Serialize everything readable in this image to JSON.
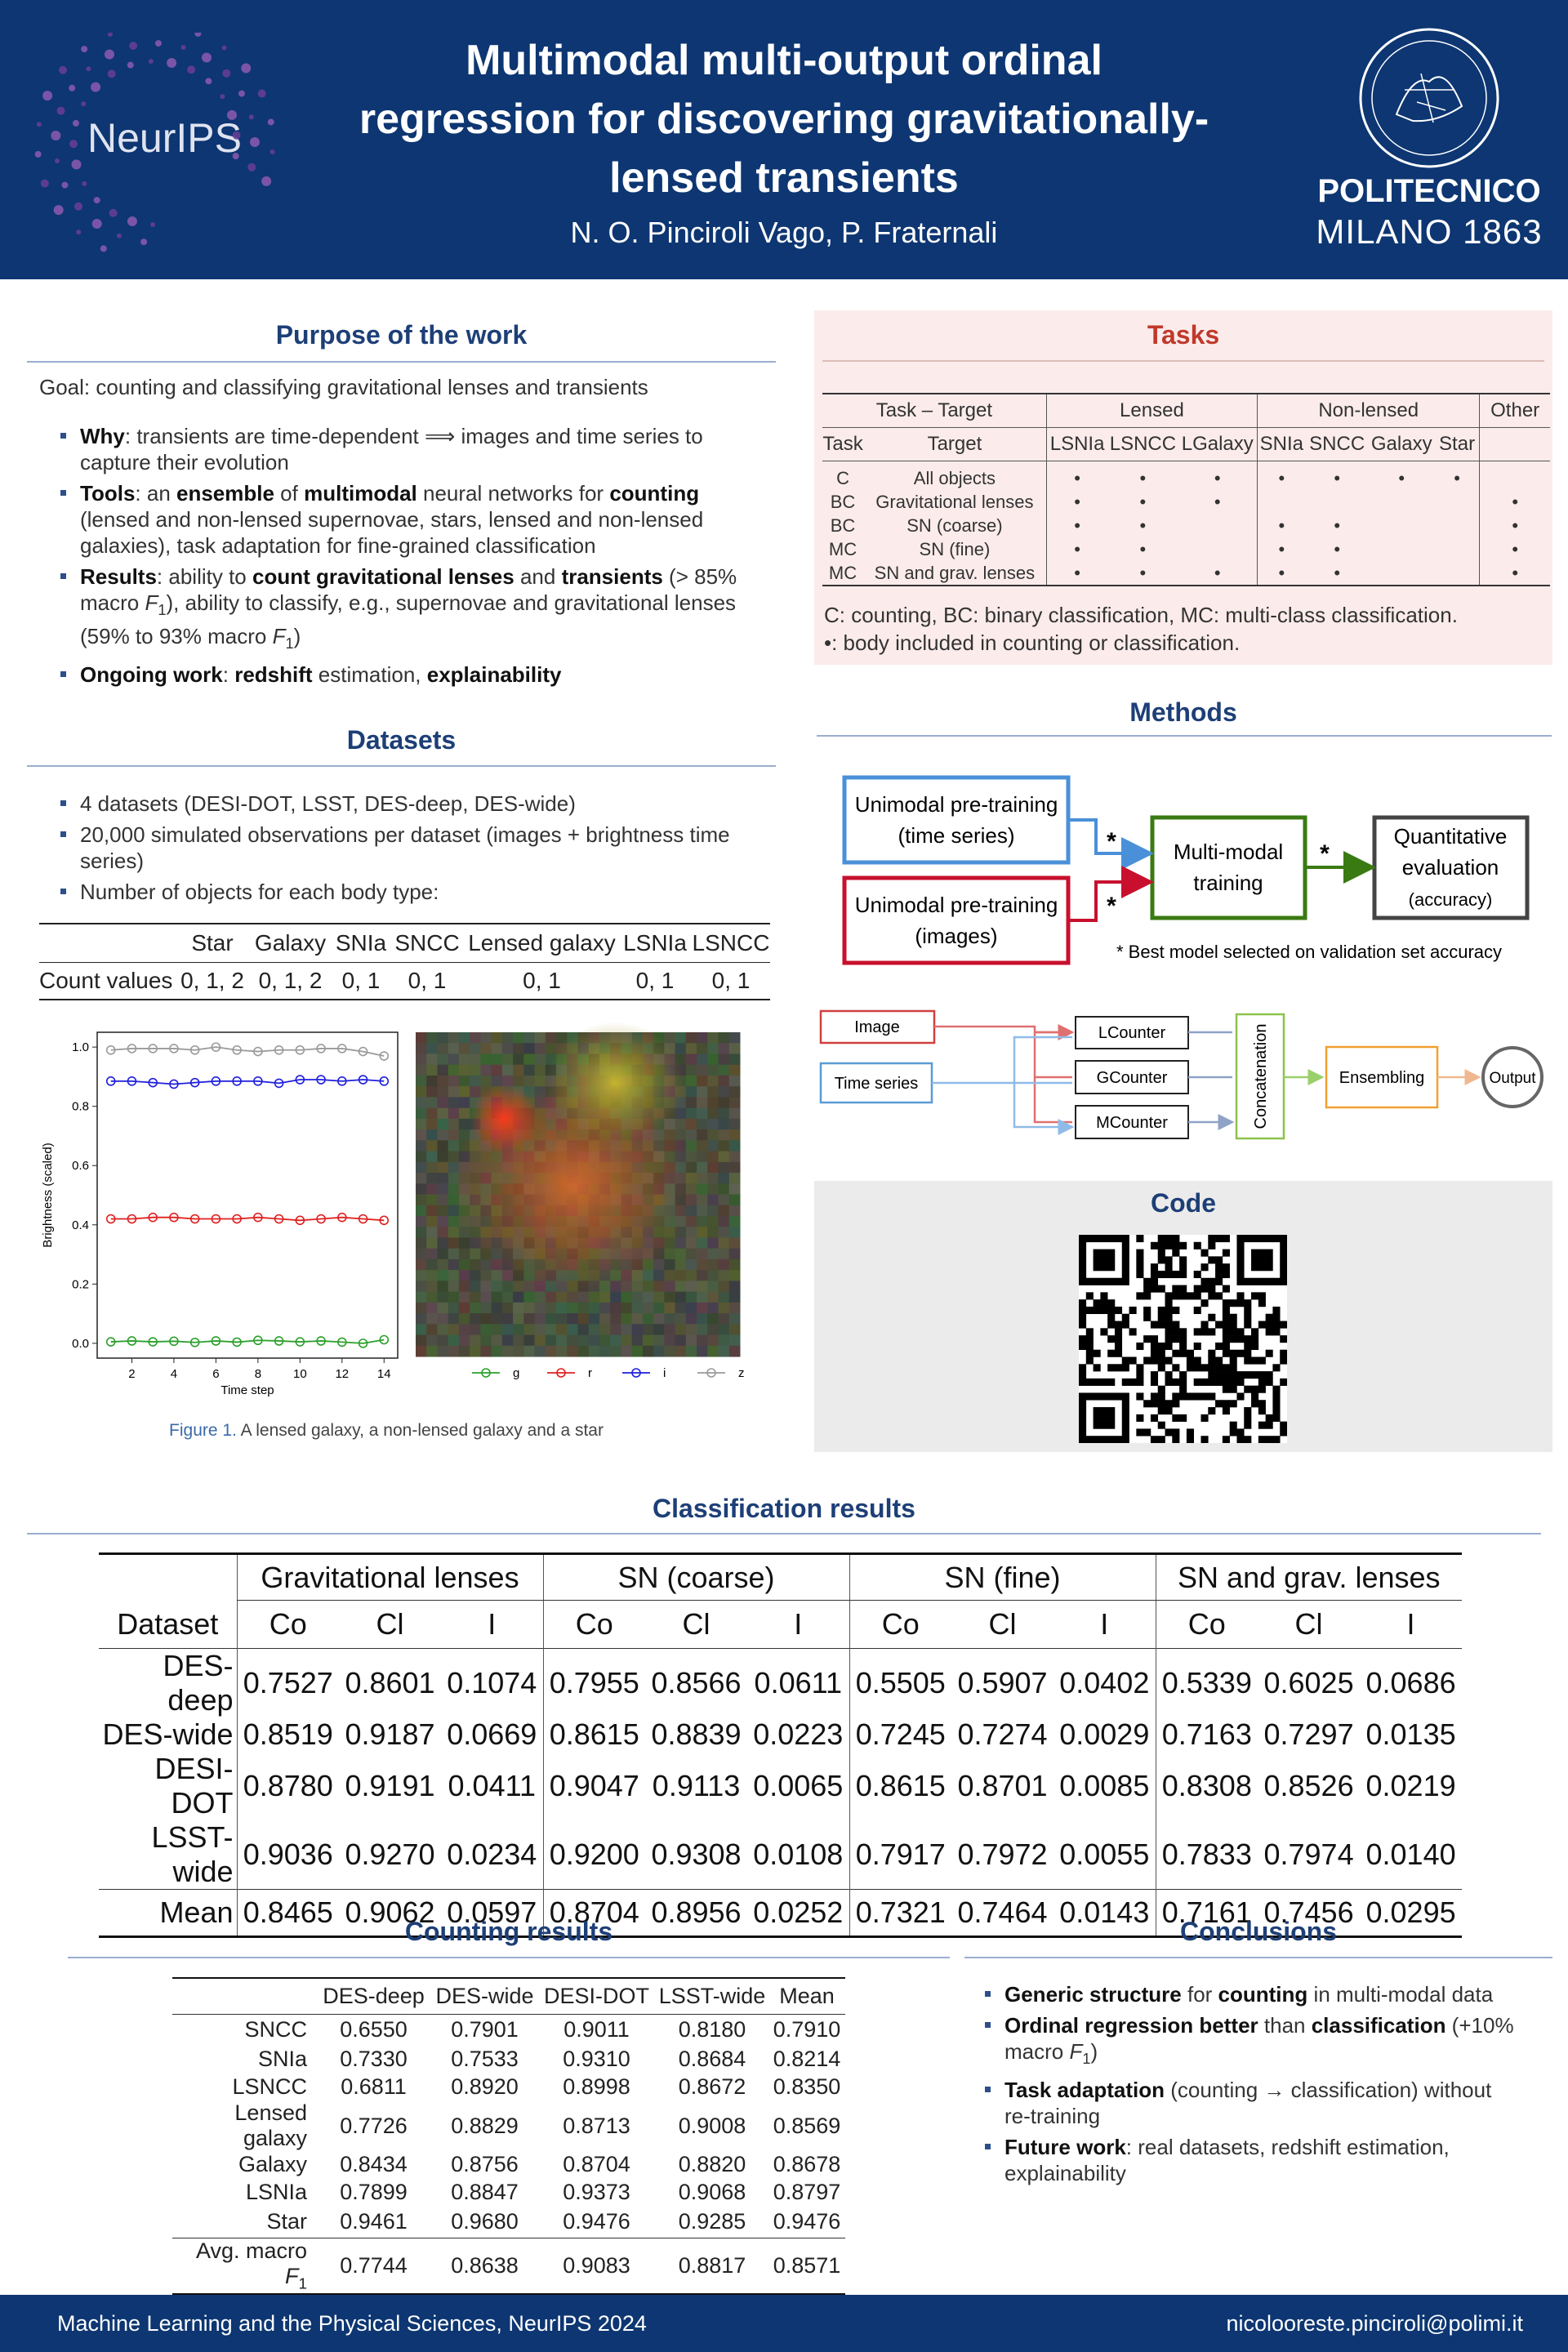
{
  "header": {
    "logo_left": "NeurIPS",
    "title": "Multimodal multi-output ordinal regression for discovering gravitationally-lensed transients",
    "authors": "N. O. Pinciroli Vago, P. Fraternali",
    "logo_right": [
      "POLITECNICO",
      "MILANO 1863"
    ]
  },
  "purpose": {
    "title": "Purpose of the work",
    "goal": [
      "Goal",
      ": counting and classifying gravitational lenses and transients"
    ],
    "bullets": [
      [
        {
          "t": "Why",
          "s": "b"
        },
        ": transients are time-dependent ⟹ images and time series to capture their evolution"
      ],
      [
        {
          "t": "Tools",
          "s": "b"
        },
        ": an ",
        {
          "t": "ensemble",
          "s": "b"
        },
        " of ",
        {
          "t": "multimodal",
          "s": "b"
        },
        " neural networks for ",
        {
          "t": "counting",
          "s": "b"
        },
        " (lensed and non-lensed supernovae, stars, lensed and non-lensed galaxies), task adaptation for fine-grained classification"
      ],
      [
        {
          "t": "Results",
          "s": "b"
        },
        ": ability to ",
        {
          "t": "count gravitational lenses",
          "s": "b"
        },
        " and ",
        {
          "t": "transients",
          "s": "b"
        },
        " (> 85% macro ",
        {
          "t": "F",
          "s": "i"
        },
        {
          "t": "1",
          "s": "sub"
        },
        "), ability to classify, e.g., supernovae and gravitational lenses (59% to 93% macro ",
        {
          "t": "F",
          "s": "i"
        },
        {
          "t": "1",
          "s": "sub"
        },
        ")"
      ],
      [
        {
          "t": "Ongoing work",
          "s": "b"
        },
        ": ",
        {
          "t": "redshift",
          "s": "b"
        },
        " estimation, ",
        {
          "t": "explainability",
          "s": "b"
        }
      ]
    ]
  },
  "tasks": {
    "title": "Tasks",
    "header_groups": [
      {
        "text": "Task – Target",
        "span": 2
      },
      {
        "text": "Lensed",
        "span": 3
      },
      {
        "text": "Non-lensed",
        "span": 4
      },
      {
        "text": "Other",
        "span": 1
      }
    ],
    "columns": [
      "Task",
      "Target",
      "LSNIa",
      "LSNCC",
      "LGalaxy",
      "SNIa",
      "SNCC",
      "Galaxy",
      "Star",
      null
    ],
    "rows": [
      [
        "C",
        "All objects",
        "•",
        "•",
        "•",
        "•",
        "•",
        "•",
        "•",
        null
      ],
      [
        "BC",
        "Gravitational lenses",
        "•",
        "•",
        "•",
        null,
        null,
        null,
        null,
        "•"
      ],
      [
        "BC",
        "SN (coarse)",
        "•",
        "•",
        null,
        "•",
        "•",
        null,
        null,
        "•"
      ],
      [
        "MC",
        "SN (fine)",
        "•",
        "•",
        null,
        "•",
        "•",
        null,
        null,
        "•"
      ],
      [
        "MC",
        "SN and grav. lenses",
        "•",
        "•",
        "•",
        "•",
        "•",
        null,
        null,
        "•"
      ]
    ],
    "notes": [
      "C: counting, BC: binary classification, MC: multi-class classification.",
      "•: body included in counting or classification."
    ]
  },
  "datasets": {
    "title": "Datasets",
    "bullets": [
      [
        "4 datasets (DESI-DOT, LSST, DES-deep, DES-wide)"
      ],
      [
        "20,000 simulated observations per dataset (images + brightness time series)"
      ],
      [
        "Number of objects for each body type:"
      ]
    ],
    "table": {
      "columns": [
        null,
        "Star",
        "Galaxy",
        "SNIa",
        "SNCC",
        "Lensed galaxy",
        "LSNIa",
        "LSNCC"
      ],
      "row": [
        "Count values",
        "0, 1, 2",
        "0, 1, 2",
        "0, 1",
        "0, 1",
        "0, 1",
        "0, 1",
        "0, 1"
      ]
    }
  },
  "figure": {
    "chart": {
      "type": "line",
      "x": [
        1,
        2,
        3,
        4,
        5,
        6,
        7,
        8,
        9,
        10,
        11,
        12,
        13,
        14
      ],
      "xlim": [
        0.35,
        14.65
      ],
      "ylim": [
        -0.05,
        1.05
      ],
      "xticks": [
        2,
        4,
        6,
        8,
        10,
        12,
        14
      ],
      "yticks": [
        {
          "value": 0,
          "label": "0.0"
        },
        0.2,
        0.4,
        0.6,
        0.8,
        {
          "value": 1,
          "label": "1.0"
        }
      ],
      "xlabel": "Time step",
      "ylabel": "Brightness (scaled)",
      "series": [
        {
          "name": "g",
          "color": "#2ca02c",
          "values": [
            0.005,
            0.008,
            0.005,
            0.007,
            0.003,
            0.008,
            0.004,
            0.01,
            0.008,
            0.005,
            0.008,
            0.004,
            0.0,
            0.012
          ]
        },
        {
          "name": "r",
          "color": "#e02020",
          "values": [
            0.42,
            0.42,
            0.425,
            0.425,
            0.42,
            0.42,
            0.42,
            0.425,
            0.42,
            0.415,
            0.42,
            0.425,
            0.42,
            0.415
          ]
        },
        {
          "name": "i",
          "color": "#1f1fdd",
          "values": [
            0.885,
            0.885,
            0.88,
            0.875,
            0.88,
            0.885,
            0.885,
            0.885,
            0.878,
            0.89,
            0.89,
            0.885,
            0.89,
            0.885
          ]
        },
        {
          "name": "z",
          "color": "#9a9a9a",
          "values": [
            0.99,
            0.995,
            0.995,
            0.995,
            0.99,
            1.0,
            0.99,
            0.985,
            0.99,
            0.99,
            0.995,
            0.995,
            0.985,
            0.97
          ]
        }
      ]
    },
    "caption": [
      {
        "t": "Figure 1.",
        "s": "fig"
      },
      " A lensed galaxy, a non-lensed galaxy and a star"
    ]
  },
  "methods": {
    "title": "Methods",
    "pretrain_ts": [
      "Unimodal pre-training",
      "(time series)"
    ],
    "pretrain_img": [
      "Unimodal pre-training",
      "(images)"
    ],
    "multimodal": [
      "Multi-modal",
      "training"
    ],
    "evaluation": [
      "Quantitative",
      "evaluation",
      "(accuracy)"
    ],
    "stars": [
      "*",
      "*",
      "*"
    ],
    "note": "* Best model selected on validation set accuracy",
    "inputs": [
      "Image",
      "Time series"
    ],
    "counters": [
      "LCounter",
      "GCounter",
      "MCounter"
    ],
    "concat": "Concatenation",
    "ensembling": "Ensembling",
    "output": "Output"
  },
  "code": {
    "title": "Code"
  },
  "classification": {
    "title": "Classification results",
    "groups": [
      "Gravitational lenses",
      "SN (coarse)",
      "SN (fine)",
      "SN and grav. lenses"
    ],
    "dataset_header": "Dataset",
    "metrics": [
      "Co",
      "Cl",
      "I"
    ],
    "rows": [
      {
        "dataset": "DES-deep",
        "values": [
          "0.7527",
          "0.8601",
          "0.1074",
          "0.7955",
          "0.8566",
          "0.0611",
          "0.5505",
          "0.5907",
          "0.0402",
          "0.5339",
          "0.6025",
          "0.0686"
        ]
      },
      {
        "dataset": "DES-wide",
        "values": [
          "0.8519",
          "0.9187",
          "0.0669",
          "0.8615",
          "0.8839",
          "0.0223",
          "0.7245",
          "0.7274",
          "0.0029",
          "0.7163",
          "0.7297",
          "0.0135"
        ]
      },
      {
        "dataset": "DESI-DOT",
        "values": [
          "0.8780",
          "0.9191",
          "0.0411",
          "0.9047",
          "0.9113",
          "0.0065",
          "0.8615",
          "0.8701",
          "0.0085",
          "0.8308",
          "0.8526",
          "0.0219"
        ]
      },
      {
        "dataset": "LSST-wide",
        "values": [
          "0.9036",
          "0.9270",
          "0.0234",
          "0.9200",
          "0.9308",
          "0.0108",
          "0.7917",
          "0.7972",
          "0.0055",
          "0.7833",
          "0.7974",
          "0.0140"
        ]
      }
    ],
    "mean": {
      "dataset": "Mean",
      "values": [
        "0.8465",
        "0.9062",
        "0.0597",
        "0.8704",
        "0.8956",
        "0.0252",
        "0.7321",
        "0.7464",
        "0.0143",
        "0.7161",
        "0.7456",
        "0.0295"
      ]
    }
  },
  "counting": {
    "title": "Counting results",
    "columns": [
      "DES-deep",
      "DES-wide",
      "DESI-DOT",
      "LSST-wide",
      "Mean"
    ],
    "rows": [
      {
        "label": "SNCC",
        "values": [
          "0.6550",
          "0.7901",
          "0.9011",
          "0.8180",
          "0.7910"
        ]
      },
      {
        "label": "SNIa",
        "values": [
          "0.7330",
          "0.7533",
          "0.9310",
          "0.8684",
          "0.8214"
        ]
      },
      {
        "label": "LSNCC",
        "values": [
          "0.6811",
          "0.8920",
          "0.8998",
          "0.8672",
          "0.8350"
        ]
      },
      {
        "label": "Lensed galaxy",
        "values": [
          "0.7726",
          "0.8829",
          "0.8713",
          "0.9008",
          "0.8569"
        ]
      },
      {
        "label": "Galaxy",
        "values": [
          "0.8434",
          "0.8756",
          "0.8704",
          "0.8820",
          "0.8678"
        ]
      },
      {
        "label": "LSNIa",
        "values": [
          "0.7899",
          "0.8847",
          "0.9373",
          "0.9068",
          "0.8797"
        ]
      },
      {
        "label": "Star",
        "values": [
          "0.9461",
          "0.9680",
          "0.9476",
          "0.9285",
          "0.9476"
        ]
      }
    ],
    "average": {
      "label": [
        "Avg. macro ",
        {
          "t": "F",
          "s": "i"
        },
        {
          "t": "1",
          "s": "sub"
        }
      ],
      "values": [
        "0.7744",
        "0.8638",
        "0.9083",
        "0.8817",
        "0.8571"
      ]
    }
  },
  "conclusions": {
    "title": "Conclusions",
    "bullets": [
      [
        {
          "t": "Generic structure",
          "s": "b"
        },
        " for ",
        {
          "t": "counting",
          "s": "b"
        },
        " in multi-modal data"
      ],
      [
        {
          "t": "Ordinal regression better",
          "s": "b"
        },
        " than ",
        {
          "t": "classification",
          "s": "b"
        },
        " (+10% macro ",
        {
          "t": "F",
          "s": "i"
        },
        {
          "t": "1",
          "s": "sub"
        },
        ")"
      ],
      [
        {
          "t": "Task adaptation",
          "s": "b"
        },
        " (counting → classification) without re-training"
      ],
      [
        {
          "t": "Future work",
          "s": "b"
        },
        ": real datasets, redshift estimation, explainability"
      ]
    ]
  },
  "footer": {
    "left": "Machine Learning and the Physical Sciences, NeurIPS 2024",
    "right": "nicolooreste.pinciroli@polimi.it"
  }
}
